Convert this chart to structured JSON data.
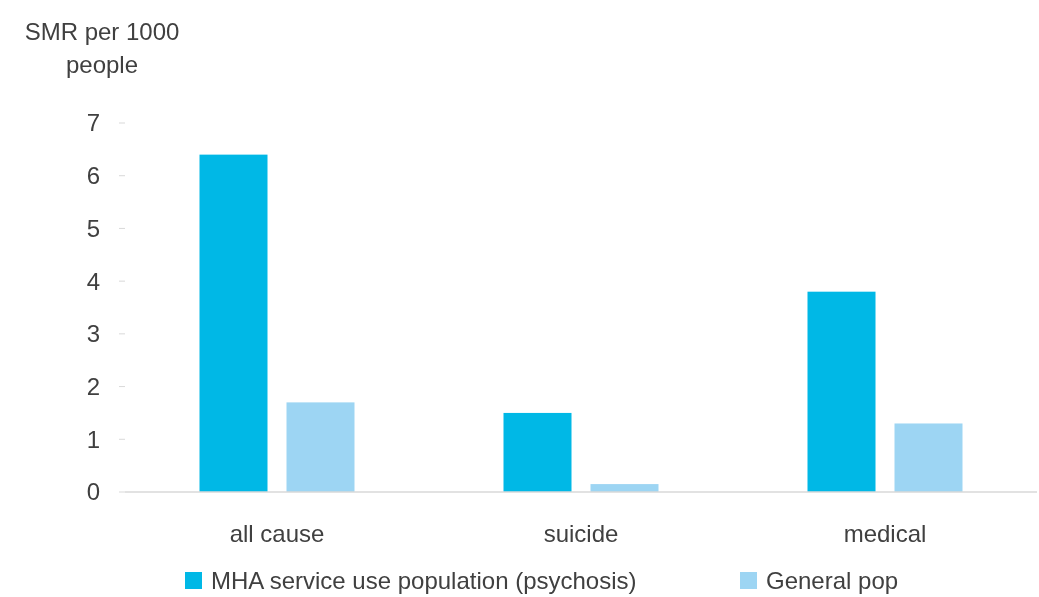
{
  "chart_data": {
    "type": "bar",
    "ylabel": "SMR per 1000 people",
    "categories": [
      "all cause",
      "suicide",
      "medical"
    ],
    "series": [
      {
        "name": "MHA service use population (psychosis)",
        "color": "#00b8e6",
        "values": [
          6.4,
          1.5,
          3.8
        ]
      },
      {
        "name": "General pop",
        "color": "#9dd5f3",
        "values": [
          1.7,
          0.15,
          1.3
        ]
      }
    ],
    "ylim": [
      0,
      7
    ],
    "yticks": [
      0,
      1,
      2,
      3,
      4,
      5,
      6,
      7
    ],
    "grid": false,
    "legend": "bottom"
  }
}
